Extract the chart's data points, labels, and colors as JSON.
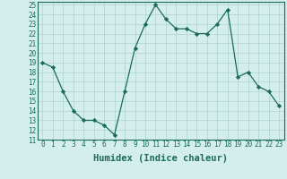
{
  "x": [
    0,
    1,
    2,
    3,
    4,
    5,
    6,
    7,
    8,
    9,
    10,
    11,
    12,
    13,
    14,
    15,
    16,
    17,
    18,
    19,
    20,
    21,
    22,
    23
  ],
  "y": [
    19,
    18.5,
    16,
    14,
    13,
    13,
    12.5,
    11.5,
    16,
    20.5,
    23,
    25,
    23.5,
    22.5,
    22.5,
    22,
    22,
    23,
    24.5,
    17.5,
    18,
    16.5,
    16,
    14.5
  ],
  "xlabel": "Humidex (Indice chaleur)",
  "ylim": [
    11,
    25
  ],
  "xlim": [
    -0.5,
    23.5
  ],
  "yticks": [
    11,
    12,
    13,
    14,
    15,
    16,
    17,
    18,
    19,
    20,
    21,
    22,
    23,
    24,
    25
  ],
  "xticks": [
    0,
    1,
    2,
    3,
    4,
    5,
    6,
    7,
    8,
    9,
    10,
    11,
    12,
    13,
    14,
    15,
    16,
    17,
    18,
    19,
    20,
    21,
    22,
    23
  ],
  "line_color": "#1a6b5a",
  "marker_color": "#1a6b5a",
  "bg_color": "#d4eeeb",
  "grid_color": "#aed4ce",
  "font_color": "#1a6b5a",
  "xlabel_fontsize": 7.5,
  "tick_fontsize": 5.5
}
